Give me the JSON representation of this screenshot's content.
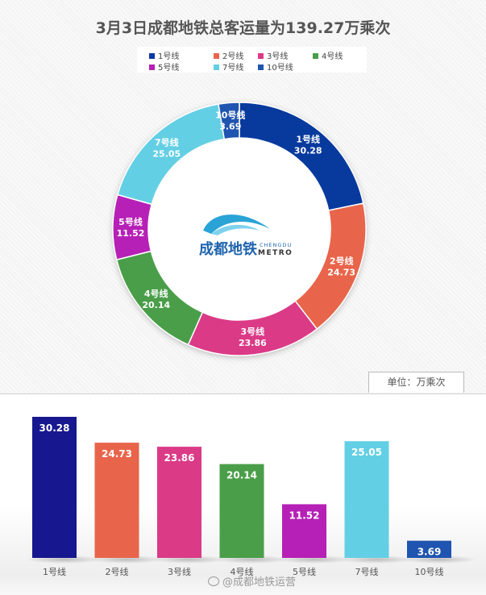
{
  "chart_data": {
    "type": "pie",
    "title": "3月3日成都地铁总客运量为139.27万乘次",
    "unit_label": "单位：万乘次",
    "categories": [
      "1号线",
      "2号线",
      "3号线",
      "4号线",
      "5号线",
      "7号线",
      "10号线"
    ],
    "values": [
      30.28,
      24.73,
      23.86,
      20.14,
      11.52,
      25.05,
      3.69
    ],
    "colors": [
      "#083a9e",
      "#e8654b",
      "#db3a87",
      "#4a9e49",
      "#b620b6",
      "#63cfe4",
      "#1f55b0"
    ],
    "bar_colors": [
      "#17178f",
      "#e8654b",
      "#db3a87",
      "#4a9e49",
      "#b620b6",
      "#63cfe4",
      "#1f55b0"
    ],
    "legend_placement": "top-center",
    "secondary_chart": {
      "type": "bar",
      "same_data": true
    }
  },
  "logo": {
    "cn": "成都地铁",
    "en_top": "CHENGDU",
    "en_bottom": "METRO"
  },
  "watermark": {
    "text": "@成都地铁运营"
  }
}
